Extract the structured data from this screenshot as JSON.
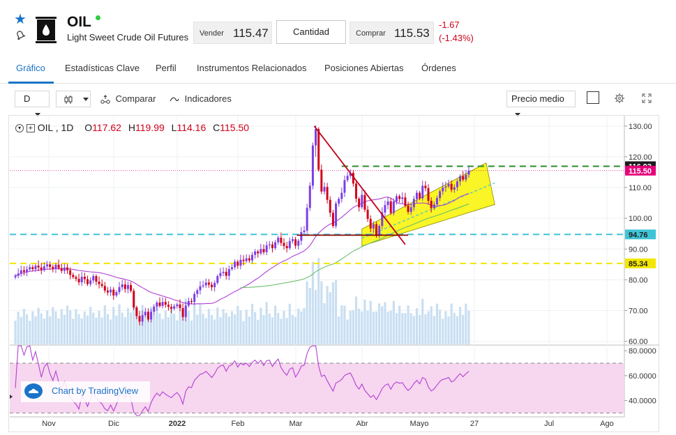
{
  "instrument": {
    "symbol": "OIL",
    "name": "Light Sweet Crude Oil Futures",
    "sell_label": "Vender",
    "sell_price": "115.47",
    "quantity_label": "Cantidad",
    "buy_label": "Comprar",
    "buy_price": "115.53",
    "change_abs": "-1.67",
    "change_pct": "(-1.43%)"
  },
  "tabs": [
    {
      "label": "Gráfico",
      "active": true
    },
    {
      "label": "Estadísticas Clave"
    },
    {
      "label": "Perfil"
    },
    {
      "label": "Instrumentos Relacionados"
    },
    {
      "label": "Posiciones Abiertas"
    },
    {
      "label": "Órdenes"
    }
  ],
  "toolbar": {
    "interval": "D",
    "compare_label": "Comparar",
    "indicators_label": "Indicadores",
    "price_type": "Precio medio"
  },
  "legend": {
    "symbol": "OIL",
    "interval": "1D",
    "open_key": "O",
    "open": "117.62",
    "high_key": "H",
    "high": "119.99",
    "low_key": "L",
    "low": "114.16",
    "close_key": "C",
    "close": "115.50"
  },
  "watermark": "Chart by TradingView",
  "colors": {
    "up": "#7b3fe4",
    "down": "#d0021b",
    "accent": "#1a73c8",
    "volume": "#c9dff2",
    "ma_purple": "#b23fd4",
    "ma_green": "#6bbf6b",
    "rsi_band": "#f7d6ef"
  },
  "chart_data": [
    {
      "type": "candlestick",
      "x_ticks": [
        "Nov",
        "Dic",
        "2022",
        "Feb",
        "Mar",
        "Abr",
        "Mayo",
        "27",
        "Jul",
        "Ago"
      ],
      "y_ticks": [
        60,
        70,
        80,
        90,
        100,
        110,
        120,
        130
      ],
      "ylim": [
        59,
        132
      ],
      "grid": true,
      "price_labels": [
        {
          "value": 116.93,
          "label": "116.93",
          "color": "#1b1b1b"
        },
        {
          "value": 115.5,
          "label": "115.50",
          "color": "#e6007a"
        },
        {
          "value": 94.76,
          "label": "94.76",
          "color": "#3fc4d6"
        },
        {
          "value": 85.34,
          "label": "85.34",
          "color": "#f3e600"
        }
      ],
      "horizontal_lines": [
        {
          "value": 116.93,
          "color": "#2a8a2a",
          "style": "dashed"
        },
        {
          "value": 94.76,
          "color": "#3fc4d6",
          "style": "dashed"
        },
        {
          "value": 85.34,
          "color": "#f3e600",
          "style": "dashed"
        }
      ],
      "closes": [
        81.3,
        82.0,
        83.1,
        82.6,
        83.4,
        84.1,
        83.5,
        84.6,
        84.0,
        83.2,
        84.4,
        85.0,
        84.2,
        83.6,
        84.9,
        83.8,
        82.9,
        84.0,
        83.1,
        81.6,
        80.9,
        80.3,
        79.2,
        81.0,
        80.2,
        78.6,
        79.8,
        81.2,
        79.4,
        78.6,
        78.0,
        76.5,
        75.9,
        76.8,
        74.9,
        76.0,
        77.6,
        78.5,
        77.0,
        78.3,
        76.4,
        71.0,
        68.2,
        66.4,
        68.5,
        69.6,
        67.1,
        69.6,
        71.3,
        72.6,
        71.5,
        72.8,
        71.9,
        71.2,
        70.6,
        71.4,
        72.0,
        70.8,
        67.9,
        71.6,
        73.1,
        72.8,
        75.4,
        76.6,
        77.9,
        78.2,
        79.1,
        78.4,
        77.6,
        79.0,
        81.2,
        82.2,
        82.6,
        81.3,
        83.5,
        84.1,
        85.9,
        84.6,
        86.5,
        86.1,
        87.0,
        86.3,
        88.1,
        89.2,
        88.6,
        90.0,
        89.0,
        91.2,
        91.5,
        90.3,
        92.2,
        93.7,
        92.0,
        91.0,
        90.3,
        92.6,
        93.2,
        91.1,
        92.7,
        95.5,
        96.0,
        103.4,
        110.6,
        123.7,
        129.0,
        115.8,
        108.7,
        110.2,
        106.0,
        101.8,
        97.5,
        104.8,
        106.3,
        108.3,
        112.4,
        113.8,
        114.8,
        111.3,
        106.4,
        103.6,
        107.6,
        102.8,
        99.8,
        96.7,
        98.1,
        94.3,
        97.5,
        101.9,
        104.3,
        105.5,
        101.7,
        105.5,
        107.2,
        106.3,
        106.8,
        104.1,
        102.1,
        103.6,
        106.3,
        108.3,
        106.5,
        110.6,
        109.8,
        105.7,
        103.3,
        104.5,
        106.6,
        108.8,
        110.0,
        110.4,
        111.2,
        109.3,
        110.1,
        112.0,
        113.7,
        112.6,
        114.2,
        115.5
      ],
      "moving_averages": [
        {
          "label": "",
          "color": "#b23fd4"
        },
        {
          "label": "",
          "color": "#6bbf6b"
        }
      ]
    },
    {
      "type": "line",
      "y_ticks": [
        40,
        60,
        80
      ],
      "ylim": [
        28,
        84
      ],
      "band": [
        30,
        70
      ],
      "color": "#b23fd4"
    }
  ]
}
